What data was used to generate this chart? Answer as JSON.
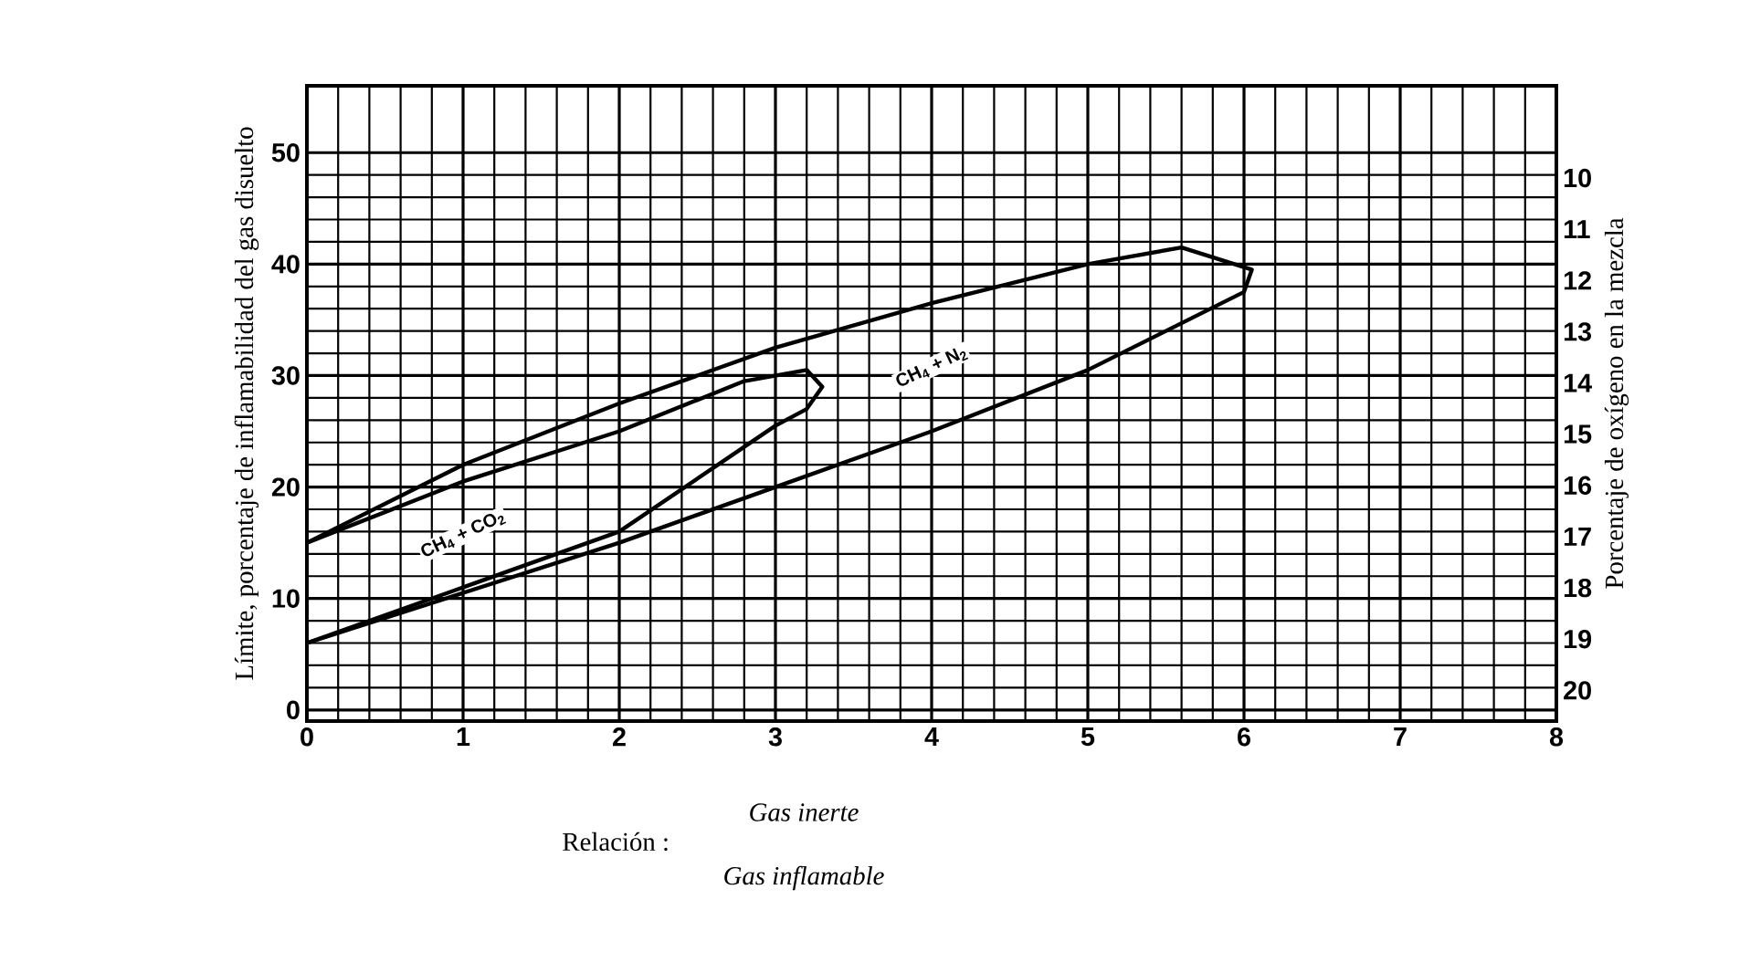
{
  "chart_data": {
    "type": "line",
    "xlabel": "Relación :",
    "ylabel": "Límite, porcentaje de inflamabilidad del gas disuelto",
    "y2label": "Porcentaje de oxígeno en la mezcla",
    "annotations": [
      "*Gas inerte*",
      "*Gas inflamable*"
    ],
    "xlim": [
      0,
      8
    ],
    "xticks": [
      0,
      1,
      2,
      3,
      4,
      5,
      6,
      7,
      8
    ],
    "ylim": [
      -1,
      56
    ],
    "yticks": [
      0,
      10,
      20,
      30,
      40,
      50
    ],
    "y2lim": [
      20.6,
      8.2
    ],
    "y2ticks": [
      10,
      11,
      12,
      13,
      14,
      15,
      16,
      17,
      18,
      19,
      20
    ],
    "grid": true,
    "marker": "none",
    "line_style": "solid",
    "series": [
      {
        "name": "CH$_{4}$ + CO$_{2}$",
        "color": "#000000",
        "x": [
          0,
          1,
          2,
          2.8,
          3.2,
          3.3,
          3.2,
          3,
          2,
          1,
          0
        ],
        "values": [
          15,
          20.5,
          25,
          29.5,
          30.5,
          29,
          27,
          25.5,
          16,
          11,
          6
        ]
      },
      {
        "name": "CH$_{4}$ + N$_{2}$",
        "color": "#000000",
        "x": [
          0,
          1,
          2,
          3,
          4,
          5,
          5.6,
          6.05,
          6,
          5,
          4,
          3,
          2,
          1,
          0
        ],
        "values": [
          15,
          22,
          27.5,
          32.5,
          36.5,
          40,
          41.5,
          39.5,
          37.5,
          30.5,
          25,
          20,
          15,
          10.5,
          6
        ]
      }
    ]
  }
}
